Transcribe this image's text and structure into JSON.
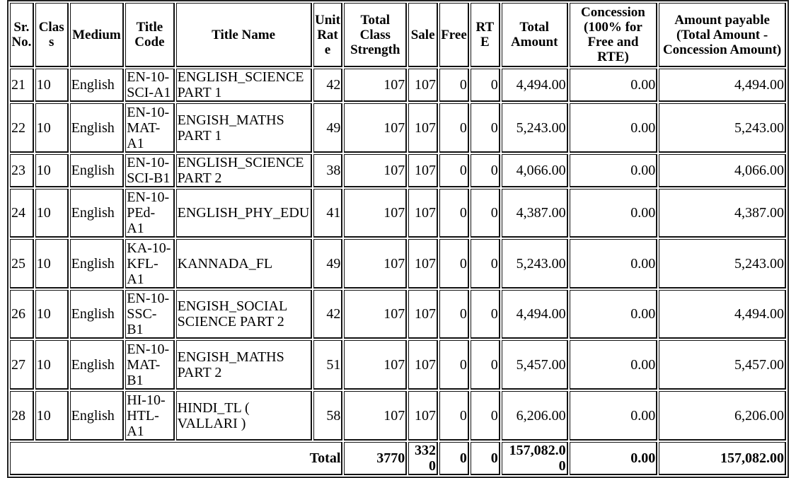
{
  "headers": [
    "Sr. No.",
    "Class",
    "Medium",
    "Title Code",
    "Title Name",
    "Unit Rate",
    "Total Class Strength",
    "Sale",
    "Free",
    "RTE",
    "Total Amount",
    "Concession (100% for Free and RTE)",
    "Amount payable (Total Amount - Concession Amount)"
  ],
  "rows": [
    [
      "21",
      "10",
      "English",
      "EN-10-SCI-A1",
      "ENGLISH_SCIENCE PART 1",
      "42",
      "107",
      "107",
      "0",
      "0",
      "4,494.00",
      "0.00",
      "4,494.00"
    ],
    [
      "22",
      "10",
      "English",
      "EN-10-MAT-A1",
      "ENGISH_MATHS PART 1",
      "49",
      "107",
      "107",
      "0",
      "0",
      "5,243.00",
      "0.00",
      "5,243.00"
    ],
    [
      "23",
      "10",
      "English",
      "EN-10-SCI-B1",
      "ENGLISH_SCIENCE PART 2",
      "38",
      "107",
      "107",
      "0",
      "0",
      "4,066.00",
      "0.00",
      "4,066.00"
    ],
    [
      "24",
      "10",
      "English",
      "EN-10-PEd-A1",
      "ENGLISH_PHY_EDU",
      "41",
      "107",
      "107",
      "0",
      "0",
      "4,387.00",
      "0.00",
      "4,387.00"
    ],
    [
      "25",
      "10",
      "English",
      "KA-10-KFL-A1",
      "KANNADA_FL",
      "49",
      "107",
      "107",
      "0",
      "0",
      "5,243.00",
      "0.00",
      "5,243.00"
    ],
    [
      "26",
      "10",
      "English",
      "EN-10-SSC-B1",
      "ENGISH_SOCIAL SCIENCE PART 2",
      "42",
      "107",
      "107",
      "0",
      "0",
      "4,494.00",
      "0.00",
      "4,494.00"
    ],
    [
      "27",
      "10",
      "English",
      "EN-10-MAT-B1",
      "ENGISH_MATHS PART 2",
      "51",
      "107",
      "107",
      "0",
      "0",
      "5,457.00",
      "0.00",
      "5,457.00"
    ],
    [
      "28",
      "10",
      "English",
      "HI-10-HTL-A1",
      "HINDI_TL ( VALLARI )",
      "58",
      "107",
      "107",
      "0",
      "0",
      "6,206.00",
      "0.00",
      "6,206.00"
    ]
  ],
  "total": {
    "label": "Total",
    "class_strength": "3770",
    "sale": "3320",
    "free": "0",
    "rte": "0",
    "total_amount": "157,082.00",
    "concession": "0.00",
    "amount_payable": "157,082.00"
  }
}
